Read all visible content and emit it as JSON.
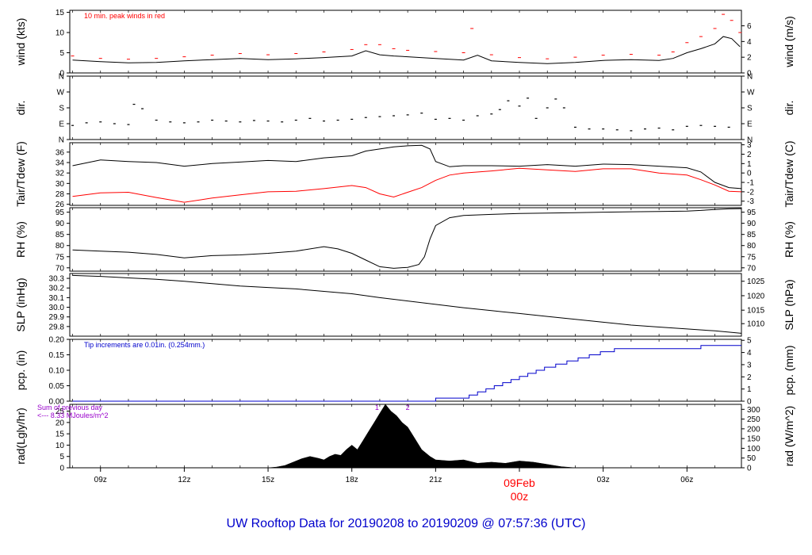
{
  "title": "UW Rooftop Data for 20190208  to  20190209 @ 07:57:36  (UTC)",
  "colors": {
    "title": "#0000cc",
    "peak": "#ff0000",
    "dew": "#ff0000",
    "precip": "#0000cc",
    "rad_note": "#9900cc",
    "date": "#ff0000"
  },
  "chart_data": {
    "type": "line",
    "time_range_utc": [
      "08Feb 08z",
      "09Feb 08z"
    ],
    "x_ticks": [
      {
        "label": "09z",
        "hour": 9
      },
      {
        "label": "12z",
        "hour": 12
      },
      {
        "label": "15z",
        "hour": 15
      },
      {
        "label": "18z",
        "hour": 18
      },
      {
        "label": "21z",
        "hour": 21
      },
      {
        "label": "00z",
        "hour": 24
      },
      {
        "label": "03z",
        "hour": 27
      },
      {
        "label": "06z",
        "hour": 30
      }
    ],
    "date_label": "09Feb",
    "date_hour_label": "00z",
    "xlim_hours": [
      7.9,
      31.95
    ],
    "panels": [
      {
        "id": "wind",
        "ylabel_left": "wind (kts)",
        "ylabel_right": "wind (m/s)",
        "ylim": [
          0,
          15.5
        ],
        "yticks": [
          0,
          5,
          10,
          15
        ],
        "right_ticks": [
          {
            "label": "0",
            "v": 0
          },
          {
            "label": "2",
            "v": 3.89
          },
          {
            "label": "4",
            "v": 7.78
          },
          {
            "label": "6",
            "v": 11.66
          }
        ],
        "annotation": "10 min. peak winds in red",
        "series": [
          {
            "type": "line",
            "x": [
              8,
              9,
              10,
              11,
              12,
              13,
              14,
              15,
              16,
              17,
              18,
              18.5,
              19,
              19.5,
              20,
              21,
              22,
              22.5,
              23,
              24,
              25,
              26,
              27,
              28,
              29,
              29.5,
              30,
              30.5,
              31,
              31.3,
              31.6,
              31.9
            ],
            "y": [
              3.2,
              2.8,
              2.5,
              2.6,
              3.0,
              3.3,
              3.6,
              3.3,
              3.5,
              3.8,
              4.2,
              5.5,
              4.5,
              4.2,
              4.0,
              3.6,
              3.2,
              4.4,
              3.0,
              2.6,
              2.3,
              2.6,
              3.1,
              3.3,
              3.1,
              3.6,
              5.0,
              6.0,
              7.2,
              9.0,
              8.5,
              6.5
            ]
          },
          {
            "type": "dashes",
            "x": [
              8,
              9,
              10,
              11,
              12,
              13,
              14,
              15,
              16,
              17,
              18,
              18.5,
              19,
              19.5,
              20,
              21,
              22,
              22.3,
              23,
              24,
              25,
              26,
              27,
              28,
              29,
              29.5,
              30,
              30.5,
              31,
              31.3,
              31.6,
              31.9
            ],
            "y": [
              4.2,
              3.6,
              3.4,
              3.6,
              4.0,
              4.4,
              4.8,
              4.5,
              4.8,
              5.2,
              5.8,
              7.0,
              7.0,
              6.0,
              5.6,
              5.3,
              5.0,
              11.0,
              4.5,
              3.8,
              3.5,
              3.9,
              4.4,
              4.6,
              4.4,
              5.2,
              7.5,
              9.0,
              11.0,
              14.5,
              13.0,
              10.0
            ]
          }
        ]
      },
      {
        "id": "dir",
        "ylabel_left": "dir.",
        "ylabel_right": "dir.",
        "ylim": [
          0,
          360
        ],
        "left_ticks": [
          {
            "label": "N",
            "v": 0
          },
          {
            "label": "E",
            "v": 90
          },
          {
            "label": "S",
            "v": 180
          },
          {
            "label": "W",
            "v": 270
          },
          {
            "label": "N",
            "v": 360
          }
        ],
        "series": [
          {
            "type": "points",
            "x": [
              8,
              8.5,
              9,
              9.5,
              10,
              10.2,
              10.5,
              11,
              11.5,
              12,
              12.5,
              13,
              13.5,
              14,
              14.5,
              15,
              15.5,
              16,
              16.5,
              17,
              17.5,
              18,
              18.5,
              19,
              19.5,
              20,
              20.5,
              21,
              21.5,
              22,
              22.5,
              23,
              23.3,
              23.6,
              24,
              24.3,
              24.6,
              25,
              25.3,
              25.6,
              26,
              26.5,
              27,
              27.5,
              28,
              28.5,
              29,
              29.5,
              30,
              30.5,
              31,
              31.5
            ],
            "y": [
              80,
              95,
              100,
              90,
              85,
              200,
              175,
              110,
              100,
              95,
              100,
              110,
              105,
              100,
              108,
              105,
              100,
              110,
              120,
              105,
              110,
              115,
              125,
              130,
              135,
              140,
              150,
              115,
              120,
              110,
              135,
              145,
              170,
              220,
              190,
              235,
              120,
              180,
              230,
              180,
              70,
              60,
              60,
              55,
              50,
              60,
              65,
              55,
              75,
              80,
              75,
              70
            ]
          }
        ]
      },
      {
        "id": "temp",
        "ylabel_left": "Tair/Tdew (F)",
        "ylabel_right": "Tair/Tdew (C)",
        "ylim": [
          25.8,
          37.8
        ],
        "yticks": [
          26,
          28,
          30,
          32,
          34,
          36
        ],
        "right_ticks": [
          {
            "label": "-3",
            "v": 26.6
          },
          {
            "label": "-2",
            "v": 28.4
          },
          {
            "label": "-1",
            "v": 30.2
          },
          {
            "label": "0",
            "v": 32
          },
          {
            "label": "1",
            "v": 33.8
          },
          {
            "label": "2",
            "v": 35.6
          },
          {
            "label": "3",
            "v": 37.4
          }
        ],
        "series": [
          {
            "name": "",
            "x": [
              8,
              9,
              10,
              11,
              12,
              13,
              14,
              15,
              16,
              17,
              18,
              18.5,
              19,
              19.5,
              20,
              20.5,
              20.8,
              21,
              21.5,
              22,
              23,
              24,
              25,
              26,
              27,
              28,
              29,
              30,
              30.5,
              31,
              31.5,
              31.95
            ],
            "y": [
              33.4,
              34.5,
              34.2,
              34.0,
              33.3,
              33.8,
              34.1,
              34.4,
              34.2,
              34.9,
              35.3,
              36.2,
              36.6,
              37.0,
              37.2,
              37.3,
              36.6,
              34.2,
              33.2,
              33.4,
              33.4,
              33.3,
              33.6,
              33.3,
              33.7,
              33.6,
              33.3,
              33.0,
              32.2,
              30.2,
              29.2,
              29.0
            ]
          },
          {
            "name": "",
            "x": [
              8,
              9,
              10,
              11,
              12,
              13,
              14,
              15,
              16,
              17,
              18,
              18.5,
              19,
              19.5,
              20,
              20.5,
              21,
              21.5,
              22,
              23,
              24,
              25,
              26,
              27,
              28,
              29,
              30,
              30.5,
              31,
              31.5,
              31.95
            ],
            "y": [
              27.5,
              28.2,
              28.3,
              27.3,
              26.4,
              27.2,
              27.8,
              28.4,
              28.5,
              29.0,
              29.6,
              29.2,
              28.0,
              27.4,
              28.3,
              29.2,
              30.6,
              31.6,
              32.0,
              32.4,
              32.9,
              32.6,
              32.3,
              32.8,
              32.8,
              32.0,
              31.6,
              30.7,
              29.7,
              28.5,
              28.4
            ]
          }
        ]
      },
      {
        "id": "rh",
        "ylabel_left": "RH (%)",
        "ylabel_right": "RH (%)",
        "ylim": [
          68.5,
          97
        ],
        "yticks": [
          70,
          75,
          80,
          85,
          90,
          95
        ],
        "right_ticks": [
          {
            "label": "70",
            "v": 70
          },
          {
            "label": "75",
            "v": 75
          },
          {
            "label": "80",
            "v": 80
          },
          {
            "label": "85",
            "v": 85
          },
          {
            "label": "90",
            "v": 90
          },
          {
            "label": "95",
            "v": 95
          }
        ],
        "series": [
          {
            "x": [
              8,
              9,
              10,
              11,
              12,
              13,
              14,
              15,
              16,
              17,
              17.5,
              18,
              18.5,
              19,
              19.5,
              20,
              20.4,
              20.6,
              20.8,
              21,
              21.5,
              22,
              23,
              24,
              25,
              26,
              27,
              28,
              29,
              30,
              30.5,
              31,
              31.5,
              31.95
            ],
            "y": [
              78,
              77.5,
              77,
              76,
              74.5,
              75.5,
              75.8,
              76.5,
              77.5,
              79.5,
              78.5,
              76.5,
              73.5,
              70.5,
              69.8,
              70.2,
              71.5,
              75,
              83,
              89,
              92.5,
              93.5,
              94,
              94.4,
              94.6,
              94.8,
              95,
              95.2,
              95.3,
              95.5,
              95.8,
              96.2,
              96.5,
              96.6
            ]
          }
        ]
      },
      {
        "id": "slp",
        "ylabel_left": "SLP (inHg)",
        "ylabel_right": "SLP (hPa)",
        "ylim": [
          29.7,
          30.35
        ],
        "yticks": [
          29.8,
          29.9,
          30.0,
          30.1,
          30.2,
          30.3
        ],
        "right_ticks": [
          {
            "label": "1010",
            "v": 29.83
          },
          {
            "label": "1015",
            "v": 29.97
          },
          {
            "label": "1020",
            "v": 30.12
          },
          {
            "label": "1025",
            "v": 30.27
          }
        ],
        "series": [
          {
            "x": [
              8,
              9,
              10,
              11,
              12,
              13,
              14,
              15,
              16,
              17,
              18,
              19,
              20,
              21,
              22,
              23,
              24,
              25,
              26,
              27,
              28,
              29,
              30,
              31,
              31.95
            ],
            "y": [
              30.33,
              30.32,
              30.305,
              30.29,
              30.27,
              30.245,
              30.22,
              30.205,
              30.19,
              30.165,
              30.14,
              30.1,
              30.065,
              30.03,
              29.995,
              29.965,
              29.935,
              29.905,
              29.875,
              29.845,
              29.815,
              29.795,
              29.775,
              29.755,
              29.73
            ]
          }
        ]
      },
      {
        "id": "pcp",
        "ylabel_left": "pcp. (in)",
        "ylabel_right": "pcp. (mm)",
        "ylim": [
          0,
          0.2
        ],
        "yticks": [
          0.0,
          0.05,
          0.1,
          0.15,
          0.2
        ],
        "right_ticks": [
          {
            "label": "0",
            "v": 0
          },
          {
            "label": "1",
            "v": 0.03937
          },
          {
            "label": "2",
            "v": 0.07874
          },
          {
            "label": "3",
            "v": 0.11811
          },
          {
            "label": "4",
            "v": 0.15748
          },
          {
            "label": "5",
            "v": 0.19685
          }
        ],
        "annotation": "Tip increments are 0.01in. (0.254mm.)",
        "series": [
          {
            "type": "step",
            "x": [
              8,
              21.0,
              21.4,
              22.2,
              22.5,
              22.8,
              23.1,
              23.4,
              23.7,
              24.0,
              24.3,
              24.6,
              24.9,
              25.3,
              25.7,
              26.1,
              26.5,
              26.9,
              27.4,
              30.5,
              31.95
            ],
            "y": [
              0,
              0.01,
              0.01,
              0.02,
              0.03,
              0.04,
              0.05,
              0.06,
              0.07,
              0.08,
              0.09,
              0.1,
              0.11,
              0.12,
              0.13,
              0.14,
              0.15,
              0.16,
              0.17,
              0.18,
              0.18
            ]
          }
        ]
      },
      {
        "id": "rad",
        "ylabel_left": "rad(Lgly/hr)",
        "ylabel_right": "rad (W/m^2)",
        "ylim": [
          0,
          28
        ],
        "yticks": [
          0,
          5,
          10,
          15,
          20,
          25
        ],
        "right_ticks": [
          {
            "label": "0",
            "v": 0
          },
          {
            "label": "50",
            "v": 4.3
          },
          {
            "label": "100",
            "v": 8.6
          },
          {
            "label": "150",
            "v": 12.9
          },
          {
            "label": "200",
            "v": 17.2
          },
          {
            "label": "250",
            "v": 21.5
          },
          {
            "label": "300",
            "v": 25.8
          }
        ],
        "annotation_lines": [
          "Sum of previous day",
          "<--- 8.33 MJoules/m^2"
        ],
        "markers": [
          {
            "label": "1",
            "hour": 18.9
          },
          {
            "label": "2",
            "hour": 20.0
          }
        ],
        "series": [
          {
            "type": "area",
            "x": [
              15.0,
              15.3,
              15.6,
              15.9,
              16.2,
              16.5,
              16.8,
              17.0,
              17.2,
              17.4,
              17.6,
              17.8,
              18.0,
              18.2,
              18.4,
              18.6,
              18.8,
              19.0,
              19.2,
              19.4,
              19.6,
              19.8,
              20.0,
              20.2,
              20.5,
              20.8,
              21.0,
              21.5,
              22.0,
              22.5,
              23.0,
              23.5,
              24.0,
              24.5,
              25.0,
              25.5,
              26.0
            ],
            "y": [
              0,
              0.3,
              1.0,
              2.5,
              4.0,
              5.0,
              4.2,
              3.5,
              5.0,
              6.0,
              5.5,
              8.0,
              10.0,
              8.0,
              12.0,
              16.0,
              20.0,
              24.0,
              28.0,
              25.0,
              23.0,
              20.0,
              18.0,
              14.0,
              8.0,
              5.0,
              3.5,
              3.0,
              3.5,
              2.0,
              2.5,
              2.0,
              3.0,
              2.5,
              1.5,
              0.5,
              0
            ]
          }
        ]
      }
    ]
  }
}
